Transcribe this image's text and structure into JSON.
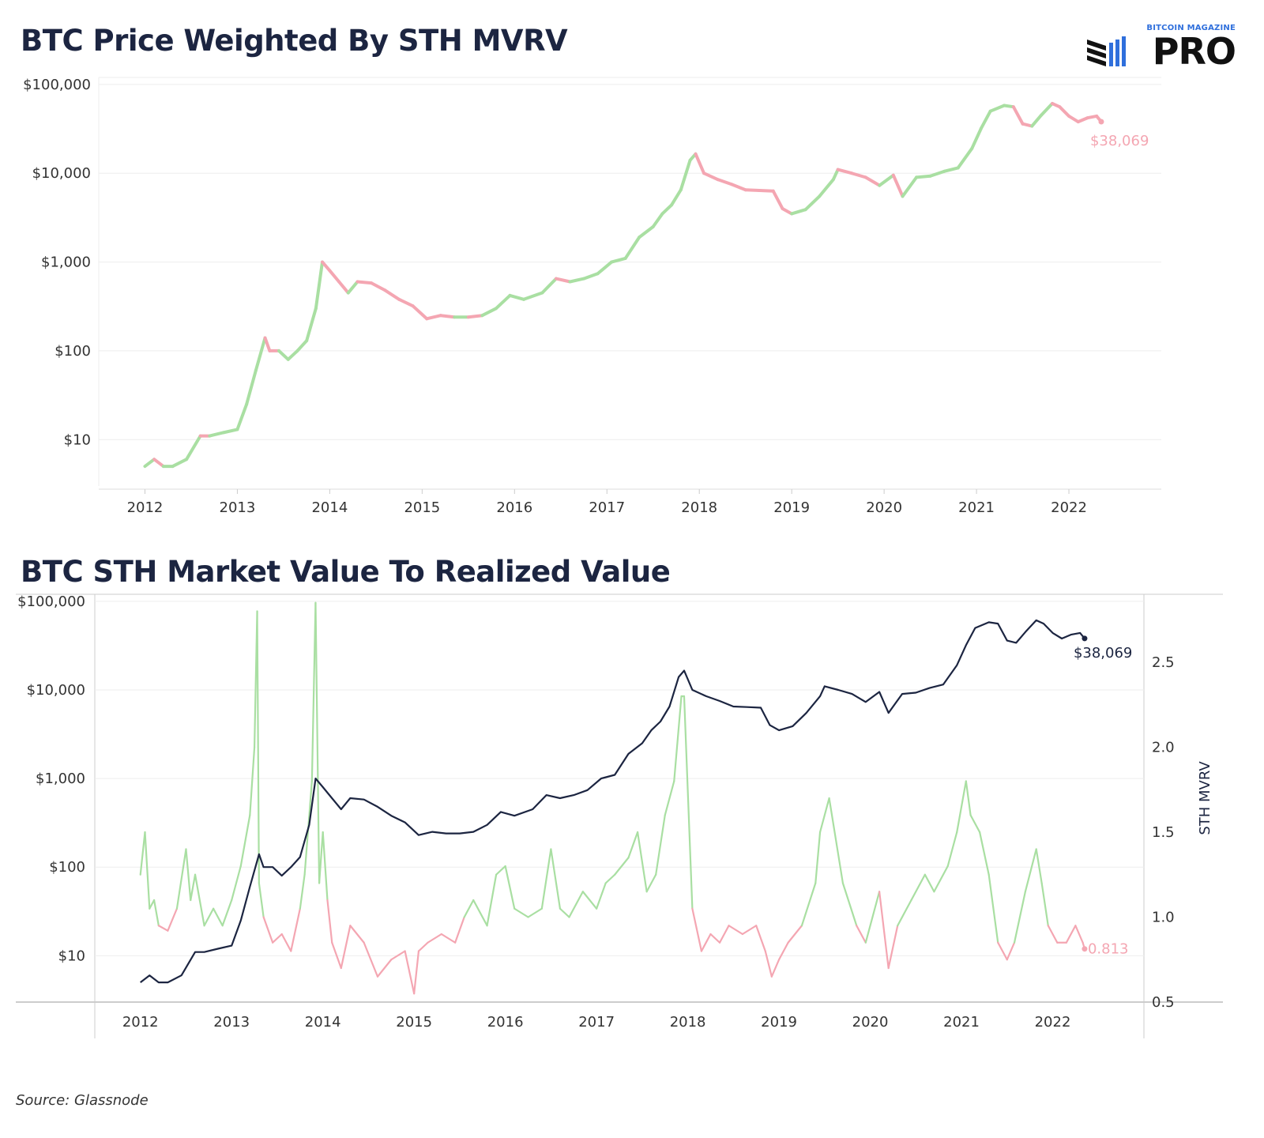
{
  "titles": {
    "top": "BTC Price Weighted By STH MVRV",
    "bottom": "BTC STH Market Value To Realized Value"
  },
  "logo": {
    "brand_top": "BITCOIN MAGAZINE",
    "brand_main": "PRO"
  },
  "source": "Source: Glassnode",
  "colors": {
    "above_one": "#a9dfa2",
    "below_one": "#f4a6b2",
    "price_line": "#1c2541",
    "grid": "#eeeeee",
    "axis_text": "#333333"
  },
  "chart_data": [
    {
      "type": "line",
      "title": "BTC Price Weighted By STH MVRV",
      "y_scale": "log",
      "ylim": [
        3,
        120000
      ],
      "y_ticks": [
        10,
        100,
        1000,
        10000,
        100000
      ],
      "y_tick_labels": [
        "$10",
        "$100",
        "$1,000",
        "$10,000",
        "$100,000"
      ],
      "xlim": [
        2011.5,
        2023.0
      ],
      "x_ticks": [
        2012,
        2013,
        2014,
        2015,
        2016,
        2017,
        2018,
        2019,
        2020,
        2021,
        2022
      ],
      "x_tick_labels": [
        "2012",
        "2013",
        "2014",
        "2015",
        "2016",
        "2017",
        "2018",
        "2019",
        "2020",
        "2021",
        "2022"
      ],
      "grid": true,
      "last_value_label": "$38,069",
      "note": "line segments colored green when STH MVRV > 1, pink when below 1",
      "series": [
        {
          "x": [
            2012.0,
            2012.1,
            2012.2,
            2012.3,
            2012.45,
            2012.6,
            2012.7,
            2012.85,
            2013.0,
            2013.1,
            2013.2,
            2013.3,
            2013.35,
            2013.45,
            2013.55,
            2013.65,
            2013.75,
            2013.85,
            2013.92,
            2014.0,
            2014.1,
            2014.2,
            2014.3,
            2014.45,
            2014.6,
            2014.75,
            2014.9,
            2015.05,
            2015.2,
            2015.35,
            2015.5,
            2015.65,
            2015.8,
            2015.95,
            2016.1,
            2016.3,
            2016.45,
            2016.6,
            2016.75,
            2016.9,
            2017.05,
            2017.2,
            2017.35,
            2017.5,
            2017.6,
            2017.7,
            2017.8,
            2017.9,
            2017.96,
            2018.05,
            2018.2,
            2018.35,
            2018.5,
            2018.65,
            2018.8,
            2018.9,
            2019.0,
            2019.15,
            2019.3,
            2019.45,
            2019.5,
            2019.65,
            2019.8,
            2019.95,
            2020.1,
            2020.2,
            2020.35,
            2020.5,
            2020.65,
            2020.8,
            2020.95,
            2021.05,
            2021.15,
            2021.3,
            2021.4,
            2021.5,
            2021.6,
            2021.7,
            2021.82,
            2021.9,
            2022.0,
            2022.1,
            2022.2,
            2022.3,
            2022.35
          ],
          "values": [
            5,
            6,
            5,
            5,
            6,
            11,
            11,
            12,
            13,
            25,
            60,
            140,
            100,
            100,
            80,
            100,
            130,
            300,
            1000,
            800,
            600,
            450,
            600,
            580,
            480,
            380,
            320,
            230,
            250,
            240,
            240,
            250,
            300,
            420,
            380,
            450,
            650,
            600,
            650,
            740,
            1000,
            1100,
            1900,
            2500,
            3500,
            4400,
            6500,
            14000,
            16500,
            10000,
            8500,
            7500,
            6500,
            6400,
            6300,
            4000,
            3500,
            3900,
            5500,
            8500,
            11000,
            10000,
            9000,
            7300,
            9500,
            5500,
            9000,
            9300,
            10500,
            11500,
            19000,
            32000,
            50000,
            58000,
            56000,
            36000,
            34000,
            45000,
            61000,
            56000,
            44000,
            38000,
            42000,
            44000,
            38069
          ],
          "state": [
            "above",
            "above",
            "below",
            "above",
            "above",
            "above",
            "below",
            "above",
            "above",
            "above",
            "above",
            "above",
            "below",
            "below",
            "above",
            "above",
            "above",
            "above",
            "above",
            "below",
            "below",
            "below",
            "above",
            "below",
            "below",
            "below",
            "below",
            "below",
            "below",
            "below",
            "above",
            "below",
            "above",
            "above",
            "above",
            "above",
            "above",
            "below",
            "above",
            "above",
            "above",
            "above",
            "above",
            "above",
            "above",
            "above",
            "above",
            "above",
            "above",
            "below",
            "below",
            "below",
            "below",
            "below",
            "below",
            "below",
            "below",
            "above",
            "above",
            "above",
            "above",
            "below",
            "below",
            "below",
            "above",
            "below",
            "above",
            "above",
            "above",
            "above",
            "above",
            "above",
            "above",
            "above",
            "above",
            "below",
            "below",
            "above",
            "above",
            "below",
            "below",
            "below",
            "below",
            "below",
            "below"
          ]
        }
      ]
    },
    {
      "type": "line",
      "title": "BTC STH Market Value To Realized Value",
      "left_axis": {
        "scale": "log",
        "ylim": [
          3,
          120000
        ],
        "ticks": [
          10,
          100,
          1000,
          10000,
          100000
        ],
        "tick_labels": [
          "$10",
          "$100",
          "$1,000",
          "$10,000",
          "$100,000"
        ]
      },
      "right_axis": {
        "label": "STH MVRV",
        "ylim": [
          0.5,
          2.9
        ],
        "ticks": [
          0.5,
          1.0,
          1.5,
          2.0,
          2.5
        ],
        "tick_labels": [
          "0.5",
          "1.0",
          "1.5",
          "2.0",
          "2.5"
        ]
      },
      "xlim": [
        2011.5,
        2023.0
      ],
      "x_ticks": [
        2012,
        2013,
        2014,
        2015,
        2016,
        2017,
        2018,
        2019,
        2020,
        2021,
        2022
      ],
      "x_tick_labels": [
        "2012",
        "2013",
        "2014",
        "2015",
        "2016",
        "2017",
        "2018",
        "2019",
        "2020",
        "2021",
        "2022"
      ],
      "grid": true,
      "price_last_label": "$38,069",
      "mvrv_last_label": "0.813",
      "price_series": {
        "x": [
          2012.0,
          2012.1,
          2012.2,
          2012.3,
          2012.45,
          2012.6,
          2012.7,
          2012.85,
          2013.0,
          2013.1,
          2013.2,
          2013.3,
          2013.35,
          2013.45,
          2013.55,
          2013.65,
          2013.75,
          2013.85,
          2013.92,
          2014.0,
          2014.1,
          2014.2,
          2014.3,
          2014.45,
          2014.6,
          2014.75,
          2014.9,
          2015.05,
          2015.2,
          2015.35,
          2015.5,
          2015.65,
          2015.8,
          2015.95,
          2016.1,
          2016.3,
          2016.45,
          2016.6,
          2016.75,
          2016.9,
          2017.05,
          2017.2,
          2017.35,
          2017.5,
          2017.6,
          2017.7,
          2017.8,
          2017.9,
          2017.96,
          2018.05,
          2018.2,
          2018.35,
          2018.5,
          2018.65,
          2018.8,
          2018.9,
          2019.0,
          2019.15,
          2019.3,
          2019.45,
          2019.5,
          2019.65,
          2019.8,
          2019.95,
          2020.1,
          2020.2,
          2020.35,
          2020.5,
          2020.65,
          2020.8,
          2020.95,
          2021.05,
          2021.15,
          2021.3,
          2021.4,
          2021.5,
          2021.6,
          2021.7,
          2021.82,
          2021.9,
          2022.0,
          2022.1,
          2022.2,
          2022.3,
          2022.35
        ],
        "values": [
          5,
          6,
          5,
          5,
          6,
          11,
          11,
          12,
          13,
          25,
          60,
          140,
          100,
          100,
          80,
          100,
          130,
          300,
          1000,
          800,
          600,
          450,
          600,
          580,
          480,
          380,
          320,
          230,
          250,
          240,
          240,
          250,
          300,
          420,
          380,
          450,
          650,
          600,
          650,
          740,
          1000,
          1100,
          1900,
          2500,
          3500,
          4400,
          6500,
          14000,
          16500,
          10000,
          8500,
          7500,
          6500,
          6400,
          6300,
          4000,
          3500,
          3900,
          5500,
          8500,
          11000,
          10000,
          9000,
          7300,
          9500,
          5500,
          9000,
          9300,
          10500,
          11500,
          19000,
          32000,
          50000,
          58000,
          56000,
          36000,
          34000,
          45000,
          61000,
          56000,
          44000,
          38000,
          42000,
          44000,
          38069
        ]
      },
      "mvrv_series": {
        "x": [
          2012.0,
          2012.05,
          2012.1,
          2012.15,
          2012.2,
          2012.3,
          2012.4,
          2012.5,
          2012.55,
          2012.6,
          2012.7,
          2012.8,
          2012.9,
          2013.0,
          2013.1,
          2013.2,
          2013.25,
          2013.28,
          2013.3,
          2013.35,
          2013.45,
          2013.55,
          2013.65,
          2013.75,
          2013.8,
          2013.88,
          2013.92,
          2013.96,
          2014.0,
          2014.05,
          2014.1,
          2014.2,
          2014.3,
          2014.45,
          2014.6,
          2014.75,
          2014.9,
          2015.0,
          2015.05,
          2015.15,
          2015.3,
          2015.45,
          2015.55,
          2015.65,
          2015.8,
          2015.9,
          2016.0,
          2016.1,
          2016.25,
          2016.4,
          2016.5,
          2016.6,
          2016.7,
          2016.85,
          2017.0,
          2017.1,
          2017.2,
          2017.35,
          2017.45,
          2017.55,
          2017.65,
          2017.75,
          2017.85,
          2017.93,
          2017.96,
          2018.05,
          2018.15,
          2018.25,
          2018.35,
          2018.45,
          2018.6,
          2018.75,
          2018.85,
          2018.92,
          2019.0,
          2019.1,
          2019.25,
          2019.4,
          2019.45,
          2019.55,
          2019.7,
          2019.85,
          2019.95,
          2020.1,
          2020.2,
          2020.3,
          2020.45,
          2020.6,
          2020.7,
          2020.85,
          2020.95,
          2021.05,
          2021.1,
          2021.2,
          2021.3,
          2021.4,
          2021.5,
          2021.58,
          2021.7,
          2021.82,
          2021.88,
          2021.95,
          2022.05,
          2022.15,
          2022.25,
          2022.33,
          2022.35
        ],
        "values": [
          1.25,
          1.5,
          1.05,
          1.1,
          0.95,
          0.92,
          1.05,
          1.4,
          1.1,
          1.25,
          0.95,
          1.05,
          0.95,
          1.1,
          1.3,
          1.6,
          2.0,
          2.8,
          1.2,
          1.0,
          0.85,
          0.9,
          0.8,
          1.05,
          1.25,
          1.8,
          2.85,
          1.2,
          1.5,
          1.1,
          0.85,
          0.7,
          0.95,
          0.85,
          0.65,
          0.75,
          0.8,
          0.55,
          0.8,
          0.85,
          0.9,
          0.85,
          1.0,
          1.1,
          0.95,
          1.25,
          1.3,
          1.05,
          1.0,
          1.05,
          1.4,
          1.05,
          1.0,
          1.15,
          1.05,
          1.2,
          1.25,
          1.35,
          1.5,
          1.15,
          1.25,
          1.6,
          1.8,
          2.3,
          2.3,
          1.05,
          0.8,
          0.9,
          0.85,
          0.95,
          0.9,
          0.95,
          0.8,
          0.65,
          0.75,
          0.85,
          0.95,
          1.2,
          1.5,
          1.7,
          1.2,
          0.95,
          0.85,
          1.15,
          0.7,
          0.95,
          1.1,
          1.25,
          1.15,
          1.3,
          1.5,
          1.8,
          1.6,
          1.5,
          1.25,
          0.85,
          0.75,
          0.85,
          1.15,
          1.4,
          1.2,
          0.95,
          0.85,
          0.85,
          0.95,
          0.85,
          0.813
        ]
      }
    }
  ]
}
